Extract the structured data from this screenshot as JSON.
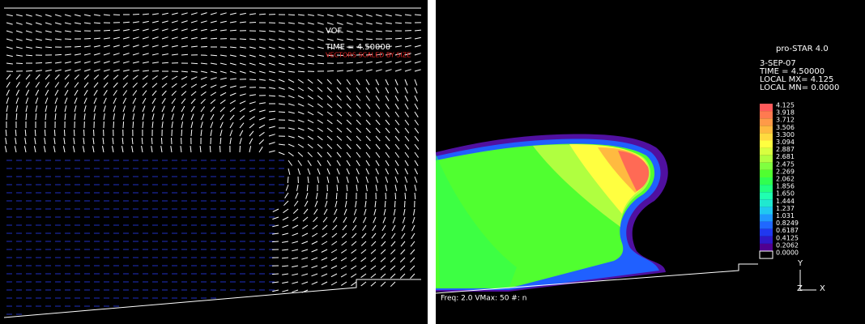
{
  "left_panel": {
    "label": "VOF",
    "time": "TIME = 4.50000",
    "note": "VECTORS SCALED BY SIZE"
  },
  "right_panel": {
    "title": "pro-STAR 4.0",
    "date": "3-SEP-07",
    "time": "TIME =  4.50000",
    "local_max": "LOCAL MX=  4.125",
    "local_min": "LOCAL MN= 0.0000",
    "legend": [
      {
        "label": "4.125",
        "color": "#ff5a5a"
      },
      {
        "label": "3.918",
        "color": "#ff7a50"
      },
      {
        "label": "3.712",
        "color": "#ff9a48"
      },
      {
        "label": "3.506",
        "color": "#ffba40"
      },
      {
        "label": "3.300",
        "color": "#ffda40"
      },
      {
        "label": "3.094",
        "color": "#ffff40"
      },
      {
        "label": "2.887",
        "color": "#d8ff40"
      },
      {
        "label": "2.681",
        "color": "#b0ff40"
      },
      {
        "label": "2.475",
        "color": "#80ff40"
      },
      {
        "label": "2.269",
        "color": "#50ff30"
      },
      {
        "label": "2.062",
        "color": "#30ff50"
      },
      {
        "label": "1.856",
        "color": "#20ff80"
      },
      {
        "label": "1.650",
        "color": "#20ffb0"
      },
      {
        "label": "1.444",
        "color": "#20e8d0"
      },
      {
        "label": "1.237",
        "color": "#20c8f0"
      },
      {
        "label": "1.031",
        "color": "#2098ff"
      },
      {
        "label": "0.8249",
        "color": "#2068ff"
      },
      {
        "label": "0.6187",
        "color": "#2038f0"
      },
      {
        "label": "0.4125",
        "color": "#3018c8"
      },
      {
        "label": "0.2062",
        "color": "#500090"
      },
      {
        "label": "0.0000",
        "color": "#000000"
      }
    ],
    "axes": {
      "y": "Y",
      "z": "Z",
      "x": "X"
    },
    "footer": "Freq: 2.0 VMax: 50 #: n"
  }
}
